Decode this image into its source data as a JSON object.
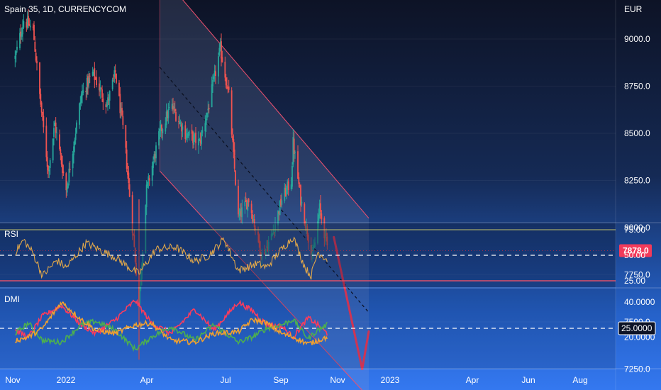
{
  "header": {
    "symbol": "Spain 35, 1D, CURRENCYCOM",
    "currency": "EUR"
  },
  "colors": {
    "up": "#26a69a",
    "down": "#ef5350",
    "channel": "#f0506e",
    "arrow": "#f23a5a",
    "rsi_line": "#e0a74a",
    "dmi_plus": "#4caf50",
    "dmi_minus": "#ff3b5c",
    "adx": "#f0a030",
    "rsi_upper": "#c5c56a",
    "rsi_lower": "#e0506a",
    "price_tag": "#f23a5a"
  },
  "chart_data": [
    {
      "type": "candlestick",
      "title": "Spain 35, 1D, CURRENCYCOM",
      "ylim": [
        7100,
        9250
      ],
      "y_ticks": [
        "9000.0",
        "8750.0",
        "8500.0",
        "8250.0",
        "8000.0",
        "7750.0",
        "7500.0",
        "7250.0"
      ],
      "x_ticks": [
        "Nov",
        "2022",
        "Apr",
        "Jul",
        "Sep",
        "Nov",
        "2023",
        "Apr",
        "Jun",
        "Aug"
      ],
      "last_price": "7878.0",
      "close_path": [
        [
          "2021-10-27",
          8900
        ],
        [
          "2021-11-05",
          9100
        ],
        [
          "2021-11-15",
          9050
        ],
        [
          "2021-11-22",
          8700
        ],
        [
          "2021-12-01",
          8300
        ],
        [
          "2021-12-08",
          8550
        ],
        [
          "2021-12-20",
          8200
        ],
        [
          "2022-01-05",
          8700
        ],
        [
          "2022-01-17",
          8820
        ],
        [
          "2022-02-01",
          8650
        ],
        [
          "2022-02-10",
          8820
        ],
        [
          "2022-02-20",
          8450
        ],
        [
          "2022-03-01",
          7950
        ],
        [
          "2022-03-07",
          7600
        ],
        [
          "2022-03-15",
          8200
        ],
        [
          "2022-03-29",
          8500
        ],
        [
          "2022-04-10",
          8650
        ],
        [
          "2022-04-25",
          8500
        ],
        [
          "2022-05-10",
          8450
        ],
        [
          "2022-05-20",
          8650
        ],
        [
          "2022-06-01",
          8950
        ],
        [
          "2022-06-10",
          8700
        ],
        [
          "2022-06-20",
          8050
        ],
        [
          "2022-07-01",
          8150
        ],
        [
          "2022-07-15",
          7850
        ],
        [
          "2022-07-25",
          7950
        ],
        [
          "2022-08-05",
          8150
        ],
        [
          "2022-08-15",
          8250
        ],
        [
          "2022-08-17",
          8450
        ],
        [
          "2022-08-25",
          8150
        ],
        [
          "2022-09-02",
          7950
        ],
        [
          "2022-09-07",
          7850
        ],
        [
          "2022-09-14",
          8100
        ],
        [
          "2022-09-22",
          7900
        ]
      ],
      "channel": {
        "upper": [
          [
            "2022-03-29",
            9350
          ],
          [
            "2022-11-05",
            8050
          ]
        ],
        "lower": [
          [
            "2022-03-29",
            8300
          ],
          [
            "2022-11-05",
            7100
          ]
        ],
        "mid": [
          [
            "2022-03-29",
            8850
          ],
          [
            "2022-11-05",
            7550
          ]
        ]
      },
      "projection_arrow": [
        [
          "2022-09-29",
          7950
        ],
        [
          "2022-10-29",
          7250
        ],
        [
          "2022-11-05",
          7450
        ]
      ]
    },
    {
      "type": "line",
      "title": "RSI",
      "ylim": [
        20,
        80
      ],
      "y_ticks": [
        "75.00",
        "50.00",
        "25.00"
      ],
      "levels": {
        "upper": 75,
        "middle": 50,
        "lower": 25
      },
      "series_path": [
        [
          "2021-10-27",
          53
        ],
        [
          "2021-11-05",
          65
        ],
        [
          "2021-11-15",
          52
        ],
        [
          "2021-11-25",
          30
        ],
        [
          "2021-12-10",
          45
        ],
        [
          "2021-12-20",
          38
        ],
        [
          "2022-01-10",
          62
        ],
        [
          "2022-01-25",
          55
        ],
        [
          "2022-02-10",
          48
        ],
        [
          "2022-03-01",
          35
        ],
        [
          "2022-03-07",
          32
        ],
        [
          "2022-03-25",
          56
        ],
        [
          "2022-04-15",
          58
        ],
        [
          "2022-05-05",
          44
        ],
        [
          "2022-05-20",
          50
        ],
        [
          "2022-06-05",
          66
        ],
        [
          "2022-06-20",
          35
        ],
        [
          "2022-07-10",
          42
        ],
        [
          "2022-07-20",
          38
        ],
        [
          "2022-08-01",
          52
        ],
        [
          "2022-08-17",
          68
        ],
        [
          "2022-08-30",
          37
        ],
        [
          "2022-09-05",
          30
        ],
        [
          "2022-09-12",
          53
        ],
        [
          "2022-09-22",
          46
        ]
      ]
    },
    {
      "type": "line",
      "title": "DMI",
      "ylim": [
        10,
        45
      ],
      "y_ticks": [
        "40.0000",
        "25.0000",
        "20.0000"
      ],
      "level": 25,
      "level_label": "25.0000",
      "series": [
        {
          "key": "minus_di",
          "values": [
            [
              "2021-10-27",
              24
            ],
            [
              "2021-11-10",
              20
            ],
            [
              "2021-11-25",
              32
            ],
            [
              "2021-12-15",
              38
            ],
            [
              "2022-01-05",
              27
            ],
            [
              "2022-01-20",
              22
            ],
            [
              "2022-02-10",
              30
            ],
            [
              "2022-03-03",
              41
            ],
            [
              "2022-03-20",
              28
            ],
            [
              "2022-04-10",
              22
            ],
            [
              "2022-05-05",
              36
            ],
            [
              "2022-05-25",
              24
            ],
            [
              "2022-06-20",
              40
            ],
            [
              "2022-07-05",
              35
            ],
            [
              "2022-07-20",
              27
            ],
            [
              "2022-08-05",
              26
            ],
            [
              "2022-08-17",
              20
            ],
            [
              "2022-09-02",
              31
            ],
            [
              "2022-09-12",
              27
            ],
            [
              "2022-09-22",
              22
            ]
          ]
        },
        {
          "key": "plus_di",
          "values": [
            [
              "2021-10-27",
              22
            ],
            [
              "2021-11-10",
              28
            ],
            [
              "2021-11-25",
              18
            ],
            [
              "2021-12-15",
              17
            ],
            [
              "2022-01-05",
              27
            ],
            [
              "2022-01-20",
              29
            ],
            [
              "2022-02-10",
              24
            ],
            [
              "2022-03-03",
              13
            ],
            [
              "2022-03-20",
              20
            ],
            [
              "2022-04-10",
              26
            ],
            [
              "2022-05-05",
              18
            ],
            [
              "2022-05-25",
              27
            ],
            [
              "2022-06-20",
              17
            ],
            [
              "2022-07-05",
              20
            ],
            [
              "2022-07-20",
              25
            ],
            [
              "2022-08-05",
              27
            ],
            [
              "2022-08-17",
              30
            ],
            [
              "2022-09-02",
              19
            ],
            [
              "2022-09-12",
              24
            ],
            [
              "2022-09-22",
              27
            ]
          ]
        },
        {
          "key": "adx",
          "values": [
            [
              "2021-10-27",
              18
            ],
            [
              "2021-11-10",
              20
            ],
            [
              "2021-11-25",
              25
            ],
            [
              "2021-12-15",
              40
            ],
            [
              "2022-01-05",
              30
            ],
            [
              "2022-01-20",
              24
            ],
            [
              "2022-02-10",
              22
            ],
            [
              "2022-03-03",
              27
            ],
            [
              "2022-03-20",
              28
            ],
            [
              "2022-04-10",
              18
            ],
            [
              "2022-05-05",
              17
            ],
            [
              "2022-05-25",
              22
            ],
            [
              "2022-06-20",
              23
            ],
            [
              "2022-07-05",
              30
            ],
            [
              "2022-07-20",
              28
            ],
            [
              "2022-08-05",
              22
            ],
            [
              "2022-08-17",
              20
            ],
            [
              "2022-09-02",
              16
            ],
            [
              "2022-09-12",
              18
            ],
            [
              "2022-09-22",
              20
            ]
          ]
        }
      ]
    }
  ]
}
